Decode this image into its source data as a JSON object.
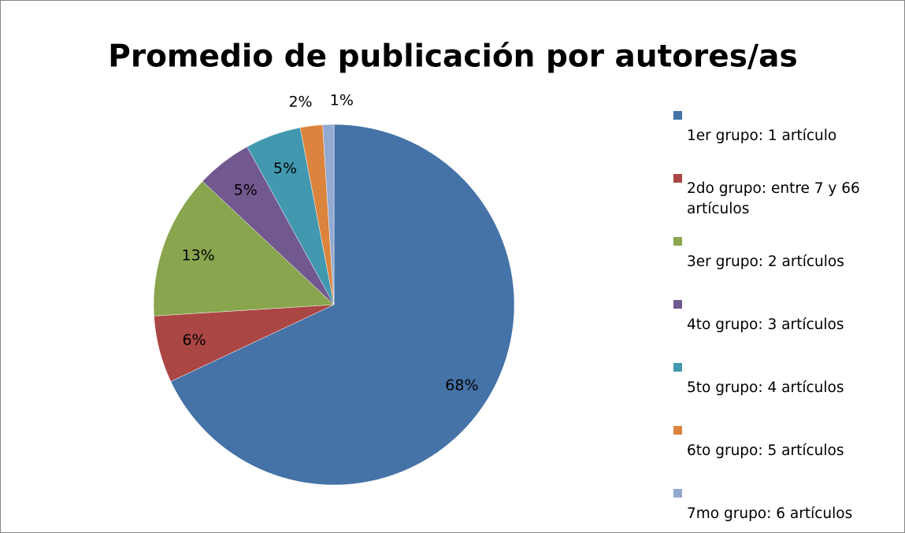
{
  "chart_data": {
    "type": "pie",
    "title": "Promedio de publicación por autores/as",
    "categories": [
      "1er grupo: 1 artículo",
      "2do grupo: entre 7 y 66 artículos",
      "3er grupo: 2 artículos",
      "4to grupo: 3 artículos",
      "5to grupo: 4 artículos",
      "6to grupo: 5 artículos",
      "7mo grupo: 6 artículos"
    ],
    "values": [
      68,
      6,
      13,
      5,
      5,
      2,
      1
    ],
    "value_labels": [
      "68%",
      "6%",
      "13%",
      "5%",
      "5%",
      "2%",
      "1%"
    ],
    "colors": [
      "#4572a7",
      "#aa4643",
      "#89a54e",
      "#71588f",
      "#4198af",
      "#db843d",
      "#93a9cf"
    ],
    "legend": "right"
  }
}
